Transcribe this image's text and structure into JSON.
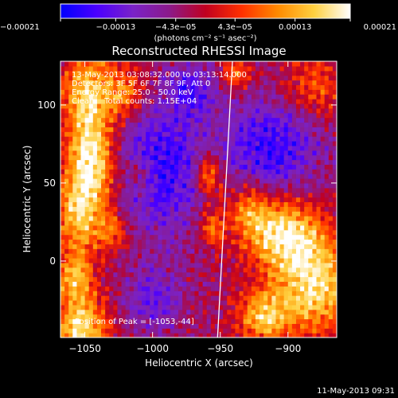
{
  "chart_data": {
    "type": "heatmap",
    "title": "Reconstructed RHESSI Image",
    "xlabel": "Heliocentric X (arcsec)",
    "ylabel": "Heliocentric Y (arcsec)",
    "xlim": [
      -1068,
      -864
    ],
    "ylim": [
      -49,
      128
    ],
    "x_ticks": [
      -1050,
      -1000,
      -950,
      -900
    ],
    "x_tick_labels": [
      "−1050",
      "−1000",
      "−950",
      "−900"
    ],
    "y_ticks": [
      0,
      50,
      100
    ],
    "y_tick_labels": [
      "0",
      "50",
      "100"
    ],
    "colorbar": {
      "range": [
        -0.00021,
        0.00021
      ],
      "ticks": [
        -0.00021,
        -0.00013,
        -4.3e-05,
        4.3e-05,
        0.00013,
        0.00021
      ],
      "tick_labels": [
        "−0.00021",
        "−0.00013",
        "−4.3e−05",
        "4.3e−05",
        "0.00013",
        "0.00021"
      ],
      "unit_label": "(photons cm⁻² s⁻¹ asec⁻²)",
      "colors": [
        "#0000ff",
        "#4b00ff",
        "#7a22c8",
        "#8b1a8a",
        "#c00020",
        "#ff3000",
        "#ff8a00",
        "#ffd040",
        "#ffffff"
      ]
    },
    "annotations": [
      "13-May-2013 03:08:32.000 to 03:13:14.000",
      "Detectors: 3F 5F 6F 7F 8F 9F, Att 0",
      "Energy Range: 25.0 - 50.0 keV",
      "Clean    Total counts: 1.15E+04"
    ],
    "peak_label": "Position of Peak = [-1053,-44]",
    "limb_line": [
      [
        -952,
        -49
      ],
      [
        -941,
        128
      ]
    ],
    "hotspots": [
      {
        "x": -1048,
        "y": 105,
        "sx": 13,
        "sy": 22,
        "a": 0.0002
      },
      {
        "x": -1044,
        "y": 62,
        "sx": 12,
        "sy": 18,
        "a": 0.00021
      },
      {
        "x": -1055,
        "y": 30,
        "sx": 12,
        "sy": 18,
        "a": 0.00018
      },
      {
        "x": -1053,
        "y": -42,
        "sx": 14,
        "sy": 14,
        "a": 0.00021
      },
      {
        "x": -1058,
        "y": -10,
        "sx": 10,
        "sy": 10,
        "a": 0.00016
      },
      {
        "x": -1020,
        "y": 108,
        "sx": 11,
        "sy": 12,
        "a": 0.00013
      },
      {
        "x": -1030,
        "y": 20,
        "sx": 9,
        "sy": 10,
        "a": 0.00012
      },
      {
        "x": -1010,
        "y": 55,
        "sx": 8,
        "sy": 8,
        "a": 9e-05
      },
      {
        "x": -958,
        "y": 55,
        "sx": 7,
        "sy": 10,
        "a": 0.00016
      },
      {
        "x": -956,
        "y": 22,
        "sx": 6,
        "sy": 8,
        "a": 0.00013
      },
      {
        "x": -938,
        "y": 120,
        "sx": 8,
        "sy": 6,
        "a": 0.00012
      },
      {
        "x": -880,
        "y": 112,
        "sx": 16,
        "sy": 14,
        "a": 0.0001
      },
      {
        "x": -905,
        "y": 18,
        "sx": 20,
        "sy": 16,
        "a": 0.00021
      },
      {
        "x": -880,
        "y": -15,
        "sx": 20,
        "sy": 22,
        "a": 0.00021
      },
      {
        "x": -918,
        "y": -35,
        "sx": 14,
        "sy": 12,
        "a": 0.00017
      },
      {
        "x": -930,
        "y": 35,
        "sx": 12,
        "sy": 12,
        "a": 0.00011
      }
    ],
    "coldspots": [
      {
        "x": -995,
        "y": 60,
        "sx": 25,
        "sy": 30,
        "a": -0.00014
      },
      {
        "x": -912,
        "y": 72,
        "sx": 25,
        "sy": 22,
        "a": -0.00014
      },
      {
        "x": -1000,
        "y": -25,
        "sx": 15,
        "sy": 15,
        "a": -9e-05
      },
      {
        "x": -972,
        "y": 110,
        "sx": 12,
        "sy": 12,
        "a": -0.0001
      }
    ],
    "baseline": -3e-05
  },
  "footer": {
    "timestamp": "11-May-2013 09:31"
  }
}
